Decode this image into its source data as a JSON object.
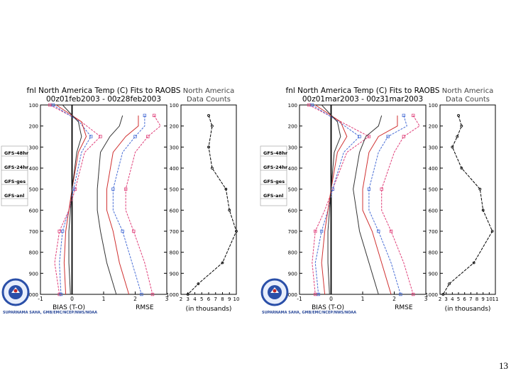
{
  "page_number": "13",
  "colors": {
    "series_48hr": "#e0407a",
    "series_24hr": "#4a6fd6",
    "series_ges": "#d03030",
    "series_anl": "#333333",
    "axis": "#000000",
    "logo_blue": "#2a4fa8",
    "logo_red": "#c02828",
    "footer_blue": "#2b4a9a"
  },
  "legend_items": [
    "GFS-48hr",
    "GFS-24hr",
    "GFS-ges",
    "GFS-anl"
  ],
  "footer_text": "SUPARNAMA SAHA, GMB/EMC/NCEP/NWS/NOAA",
  "logo_text": "NATIONAL WEATHER SERVICE",
  "chart_data": [
    {
      "type": "line",
      "title_line1": "fnl North America Temp (C) Fits to RAOBS",
      "title_line2": "00z01feb2003 - 00z28feb2003",
      "xlabel_left": "BIAS (T-O)",
      "xlabel_right": "RMSE",
      "yticks": [
        100,
        200,
        300,
        400,
        500,
        600,
        700,
        800,
        900,
        1000
      ],
      "xticks": [
        "-1",
        "0",
        "1",
        "2",
        "3"
      ],
      "xlim": [
        -1,
        3
      ],
      "ylim": [
        100,
        1000
      ],
      "series": [
        {
          "name": "GFS-48hr",
          "color_key": "series_48hr",
          "bias": [
            [
              -0.7,
              100
            ],
            [
              0.25,
              175
            ],
            [
              0.9,
              250
            ],
            [
              0.4,
              325
            ],
            [
              0.1,
              500
            ],
            [
              -0.1,
              600
            ],
            [
              -0.4,
              700
            ],
            [
              -0.55,
              850
            ],
            [
              -0.4,
              1000
            ]
          ],
          "rmse": [
            [
              2.6,
              150
            ],
            [
              2.8,
              200
            ],
            [
              2.4,
              250
            ],
            [
              2.0,
              325
            ],
            [
              1.7,
              500
            ],
            [
              1.7,
              600
            ],
            [
              1.95,
              700
            ],
            [
              2.3,
              850
            ],
            [
              2.55,
              1000
            ]
          ]
        },
        {
          "name": "GFS-24hr",
          "color_key": "series_24hr",
          "bias": [
            [
              -0.6,
              100
            ],
            [
              0.2,
              175
            ],
            [
              0.6,
              250
            ],
            [
              0.3,
              325
            ],
            [
              0.05,
              500
            ],
            [
              -0.1,
              600
            ],
            [
              -0.3,
              700
            ],
            [
              -0.4,
              850
            ],
            [
              -0.35,
              1000
            ]
          ],
          "rmse": [
            [
              2.3,
              150
            ],
            [
              2.3,
              200
            ],
            [
              2.0,
              250
            ],
            [
              1.6,
              325
            ],
            [
              1.3,
              500
            ],
            [
              1.3,
              600
            ],
            [
              1.6,
              700
            ],
            [
              1.9,
              850
            ],
            [
              2.2,
              1000
            ]
          ]
        },
        {
          "name": "GFS-ges",
          "color_key": "series_ges",
          "bias": [
            [
              -0.5,
              100
            ],
            [
              0.3,
              180
            ],
            [
              0.45,
              250
            ],
            [
              0.2,
              325
            ],
            [
              0.0,
              500
            ],
            [
              -0.1,
              600
            ],
            [
              -0.2,
              700
            ],
            [
              -0.25,
              850
            ],
            [
              -0.2,
              1000
            ]
          ],
          "rmse": [
            [
              2.1,
              150
            ],
            [
              2.1,
              200
            ],
            [
              1.7,
              250
            ],
            [
              1.3,
              325
            ],
            [
              1.1,
              500
            ],
            [
              1.1,
              600
            ],
            [
              1.3,
              700
            ],
            [
              1.5,
              850
            ],
            [
              1.8,
              1000
            ]
          ]
        },
        {
          "name": "GFS-anl",
          "color_key": "series_anl",
          "bias": [
            [
              -0.3,
              100
            ],
            [
              0.2,
              180
            ],
            [
              0.3,
              250
            ],
            [
              0.15,
              325
            ],
            [
              0.0,
              500
            ],
            [
              -0.05,
              600
            ],
            [
              -0.1,
              700
            ],
            [
              -0.1,
              850
            ],
            [
              -0.05,
              1000
            ]
          ],
          "rmse": [
            [
              1.6,
              150
            ],
            [
              1.5,
              200
            ],
            [
              1.2,
              250
            ],
            [
              0.9,
              325
            ],
            [
              0.8,
              500
            ],
            [
              0.8,
              600
            ],
            [
              0.9,
              700
            ],
            [
              1.1,
              850
            ],
            [
              1.4,
              1000
            ]
          ]
        }
      ],
      "counts": {
        "title_line1": "North America",
        "title_line2": "Data Counts",
        "xlabel": "(in thousands)",
        "xticks": [
          "2",
          "3",
          "4",
          "5",
          "6",
          "7",
          "8",
          "9",
          "10"
        ],
        "xlim": [
          2,
          10
        ],
        "values": [
          [
            6.0,
            150
          ],
          [
            6.5,
            200
          ],
          [
            6.0,
            300
          ],
          [
            6.5,
            400
          ],
          [
            8.5,
            500
          ],
          [
            9.0,
            600
          ],
          [
            10.0,
            700
          ],
          [
            8.0,
            850
          ],
          [
            4.5,
            950
          ],
          [
            3.0,
            1000
          ]
        ]
      }
    },
    {
      "type": "line",
      "title_line1": "fnl North America Temp (C) Fits to RAOBS",
      "title_line2": "00z01mar2003 - 00z31mar2003",
      "xlabel_left": "BIAS (T-O)",
      "xlabel_right": "RMSE",
      "yticks": [
        100,
        200,
        300,
        400,
        500,
        600,
        700,
        800,
        900,
        1000
      ],
      "xticks": [
        "-1",
        "0",
        "1",
        "2",
        "3"
      ],
      "xlim": [
        -1,
        3
      ],
      "ylim": [
        100,
        1000
      ],
      "series": [
        {
          "name": "GFS-48hr",
          "color_key": "series_48hr",
          "bias": [
            [
              -0.7,
              100
            ],
            [
              0.25,
              175
            ],
            [
              1.2,
              250
            ],
            [
              0.5,
              325
            ],
            [
              0.05,
              500
            ],
            [
              -0.2,
              600
            ],
            [
              -0.5,
              700
            ],
            [
              -0.6,
              850
            ],
            [
              -0.5,
              1000
            ]
          ],
          "rmse": [
            [
              2.6,
              150
            ],
            [
              2.8,
              200
            ],
            [
              2.3,
              250
            ],
            [
              2.0,
              325
            ],
            [
              1.6,
              500
            ],
            [
              1.6,
              600
            ],
            [
              1.9,
              700
            ],
            [
              2.3,
              850
            ],
            [
              2.6,
              1000
            ]
          ]
        },
        {
          "name": "GFS-24hr",
          "color_key": "series_24hr",
          "bias": [
            [
              -0.6,
              100
            ],
            [
              0.2,
              175
            ],
            [
              0.9,
              250
            ],
            [
              0.4,
              325
            ],
            [
              0.05,
              500
            ],
            [
              -0.1,
              600
            ],
            [
              -0.3,
              700
            ],
            [
              -0.5,
              850
            ],
            [
              -0.4,
              1000
            ]
          ],
          "rmse": [
            [
              2.3,
              150
            ],
            [
              2.4,
              200
            ],
            [
              1.8,
              250
            ],
            [
              1.5,
              325
            ],
            [
              1.2,
              500
            ],
            [
              1.2,
              600
            ],
            [
              1.5,
              700
            ],
            [
              1.9,
              850
            ],
            [
              2.2,
              1000
            ]
          ]
        },
        {
          "name": "GFS-ges",
          "color_key": "series_ges",
          "bias": [
            [
              -0.5,
              100
            ],
            [
              0.3,
              180
            ],
            [
              0.5,
              250
            ],
            [
              0.2,
              325
            ],
            [
              0.0,
              500
            ],
            [
              -0.1,
              600
            ],
            [
              -0.2,
              700
            ],
            [
              -0.3,
              850
            ],
            [
              -0.2,
              1000
            ]
          ],
          "rmse": [
            [
              2.1,
              150
            ],
            [
              2.1,
              200
            ],
            [
              1.5,
              250
            ],
            [
              1.2,
              325
            ],
            [
              1.0,
              500
            ],
            [
              1.0,
              600
            ],
            [
              1.3,
              700
            ],
            [
              1.6,
              850
            ],
            [
              1.9,
              1000
            ]
          ]
        },
        {
          "name": "GFS-anl",
          "color_key": "series_anl",
          "bias": [
            [
              -0.3,
              100
            ],
            [
              0.2,
              180
            ],
            [
              0.3,
              250
            ],
            [
              0.1,
              325
            ],
            [
              0.0,
              500
            ],
            [
              -0.05,
              600
            ],
            [
              -0.1,
              700
            ],
            [
              -0.1,
              850
            ],
            [
              -0.05,
              1000
            ]
          ],
          "rmse": [
            [
              1.6,
              150
            ],
            [
              1.5,
              200
            ],
            [
              1.1,
              250
            ],
            [
              0.9,
              325
            ],
            [
              0.7,
              500
            ],
            [
              0.8,
              600
            ],
            [
              0.9,
              700
            ],
            [
              1.2,
              850
            ],
            [
              1.5,
              1000
            ]
          ]
        }
      ],
      "counts": {
        "title_line1": "North America",
        "title_line2": "Data Counts",
        "xlabel": "(in thousands)",
        "xticks": [
          "2",
          "3",
          "4",
          "5",
          "6",
          "7",
          "8",
          "9",
          "10",
          "11"
        ],
        "xlim": [
          2,
          11
        ],
        "values": [
          [
            5.0,
            150
          ],
          [
            5.5,
            200
          ],
          [
            4.8,
            250
          ],
          [
            4.0,
            300
          ],
          [
            5.5,
            400
          ],
          [
            8.5,
            500
          ],
          [
            9.0,
            600
          ],
          [
            10.5,
            700
          ],
          [
            7.5,
            850
          ],
          [
            3.5,
            950
          ],
          [
            2.5,
            1000
          ]
        ]
      }
    }
  ]
}
